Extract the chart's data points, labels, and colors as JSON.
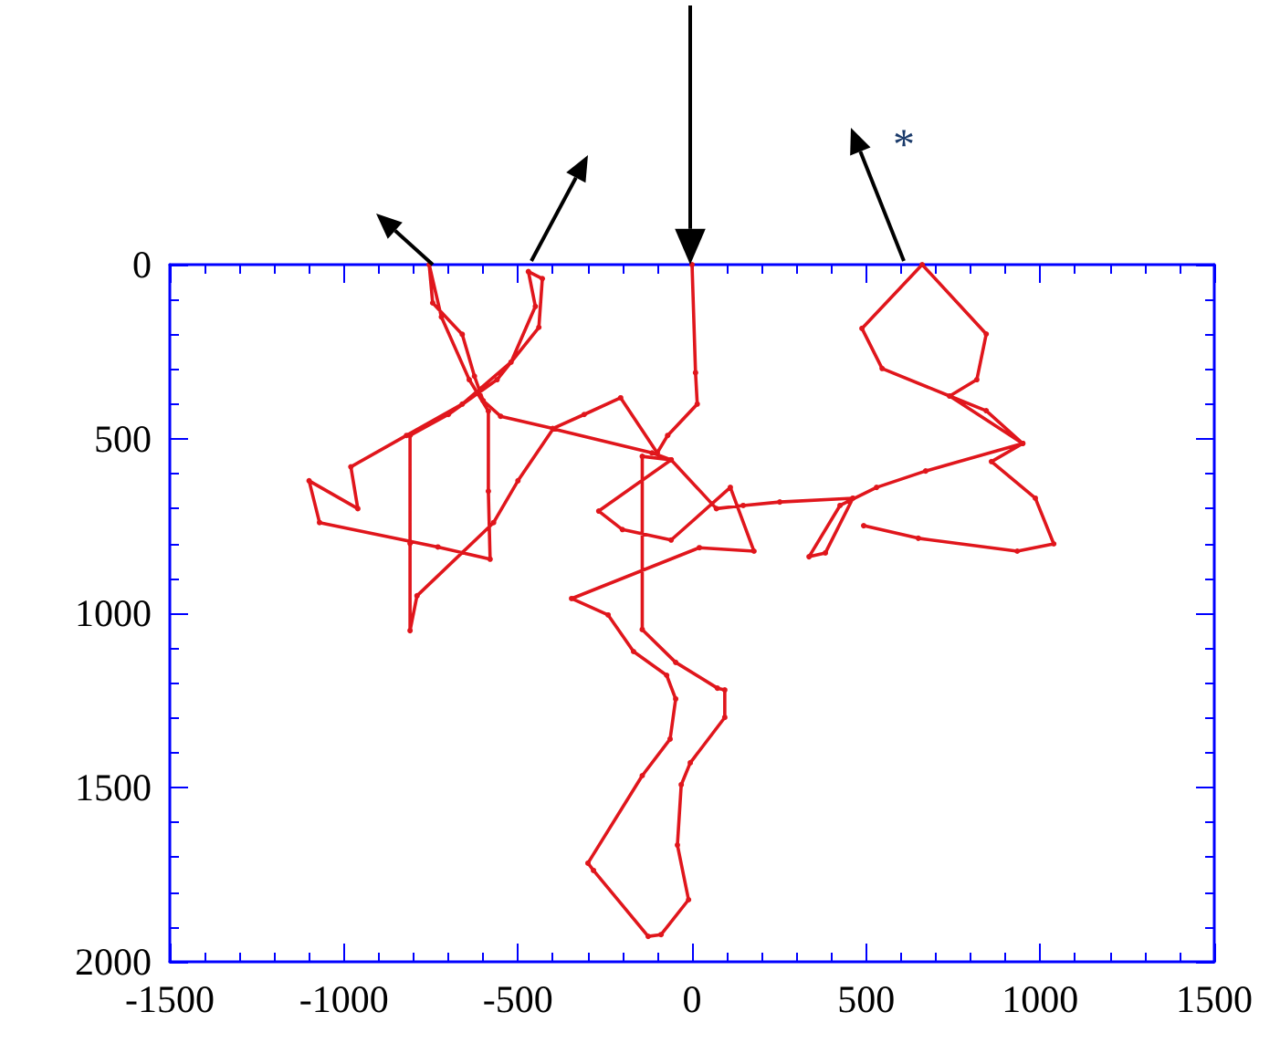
{
  "chart_data": {
    "type": "line",
    "annotations": [
      "*"
    ],
    "xlim": [
      -1500,
      1500
    ],
    "xticks": [
      -1500,
      -1000,
      -500,
      0,
      500,
      1000,
      1500
    ],
    "ylim": [
      2000,
      0
    ],
    "yticks": [
      0,
      500,
      1000,
      1500,
      2000
    ],
    "marker": "circle",
    "line_style": "solid",
    "series": [
      {
        "color": "#e0161c",
        "x": [
          0,
          10,
          15,
          -70,
          -100,
          -205,
          -310,
          -400,
          -550,
          -600,
          -625,
          -660,
          -745,
          -755,
          -720,
          -640,
          -585,
          -585,
          -580,
          -730,
          -1070,
          -1100,
          -960,
          -980,
          -820,
          -660,
          -520,
          -450,
          -470,
          -430,
          -440,
          -560,
          -700,
          -810,
          -810,
          -810,
          -790,
          -570,
          -500,
          -399,
          -115,
          -60,
          -268,
          -200,
          -60,
          110,
          178,
          21,
          -346,
          -241,
          -168,
          -73,
          -47,
          -63,
          -143,
          -299,
          -283,
          -126,
          -89,
          -10,
          -42,
          -31,
          -5,
          94,
          94,
          73,
          -47,
          -143,
          -143,
          -60,
          70,
          147,
          252,
          462,
          383,
          336,
          425,
          530,
          671,
          950,
          845,
          740,
          546,
          488,
          661,
          845,
          818,
          740,
          950,
          860,
          986,
          1039,
          934,
          650,
          493
        ],
        "values": [
          0,
          310,
          400,
          490,
          540,
          382,
          430,
          470,
          435,
          390,
          320,
          200,
          110,
          0,
          150,
          330,
          420,
          650,
          845,
          810,
          740,
          620,
          700,
          580,
          490,
          400,
          280,
          120,
          20,
          40,
          180,
          330,
          430,
          490,
          800,
          1050,
          950,
          740,
          620,
          471,
          540,
          560,
          707,
          760,
          790,
          639,
          822,
          812,
          958,
          1005,
          1110,
          1178,
          1246,
          1361,
          1466,
          1717,
          1738,
          1927,
          1922,
          1822,
          1665,
          1492,
          1429,
          1299,
          1220,
          1215,
          1141,
          1047,
          550,
          560,
          700,
          691,
          681,
          670,
          827,
          838,
          691,
          639,
          592,
          513,
          419,
          377,
          298,
          183,
          0,
          199,
          330,
          377,
          513,
          565,
          670,
          801,
          822,
          785,
          749
        ]
      }
    ]
  }
}
